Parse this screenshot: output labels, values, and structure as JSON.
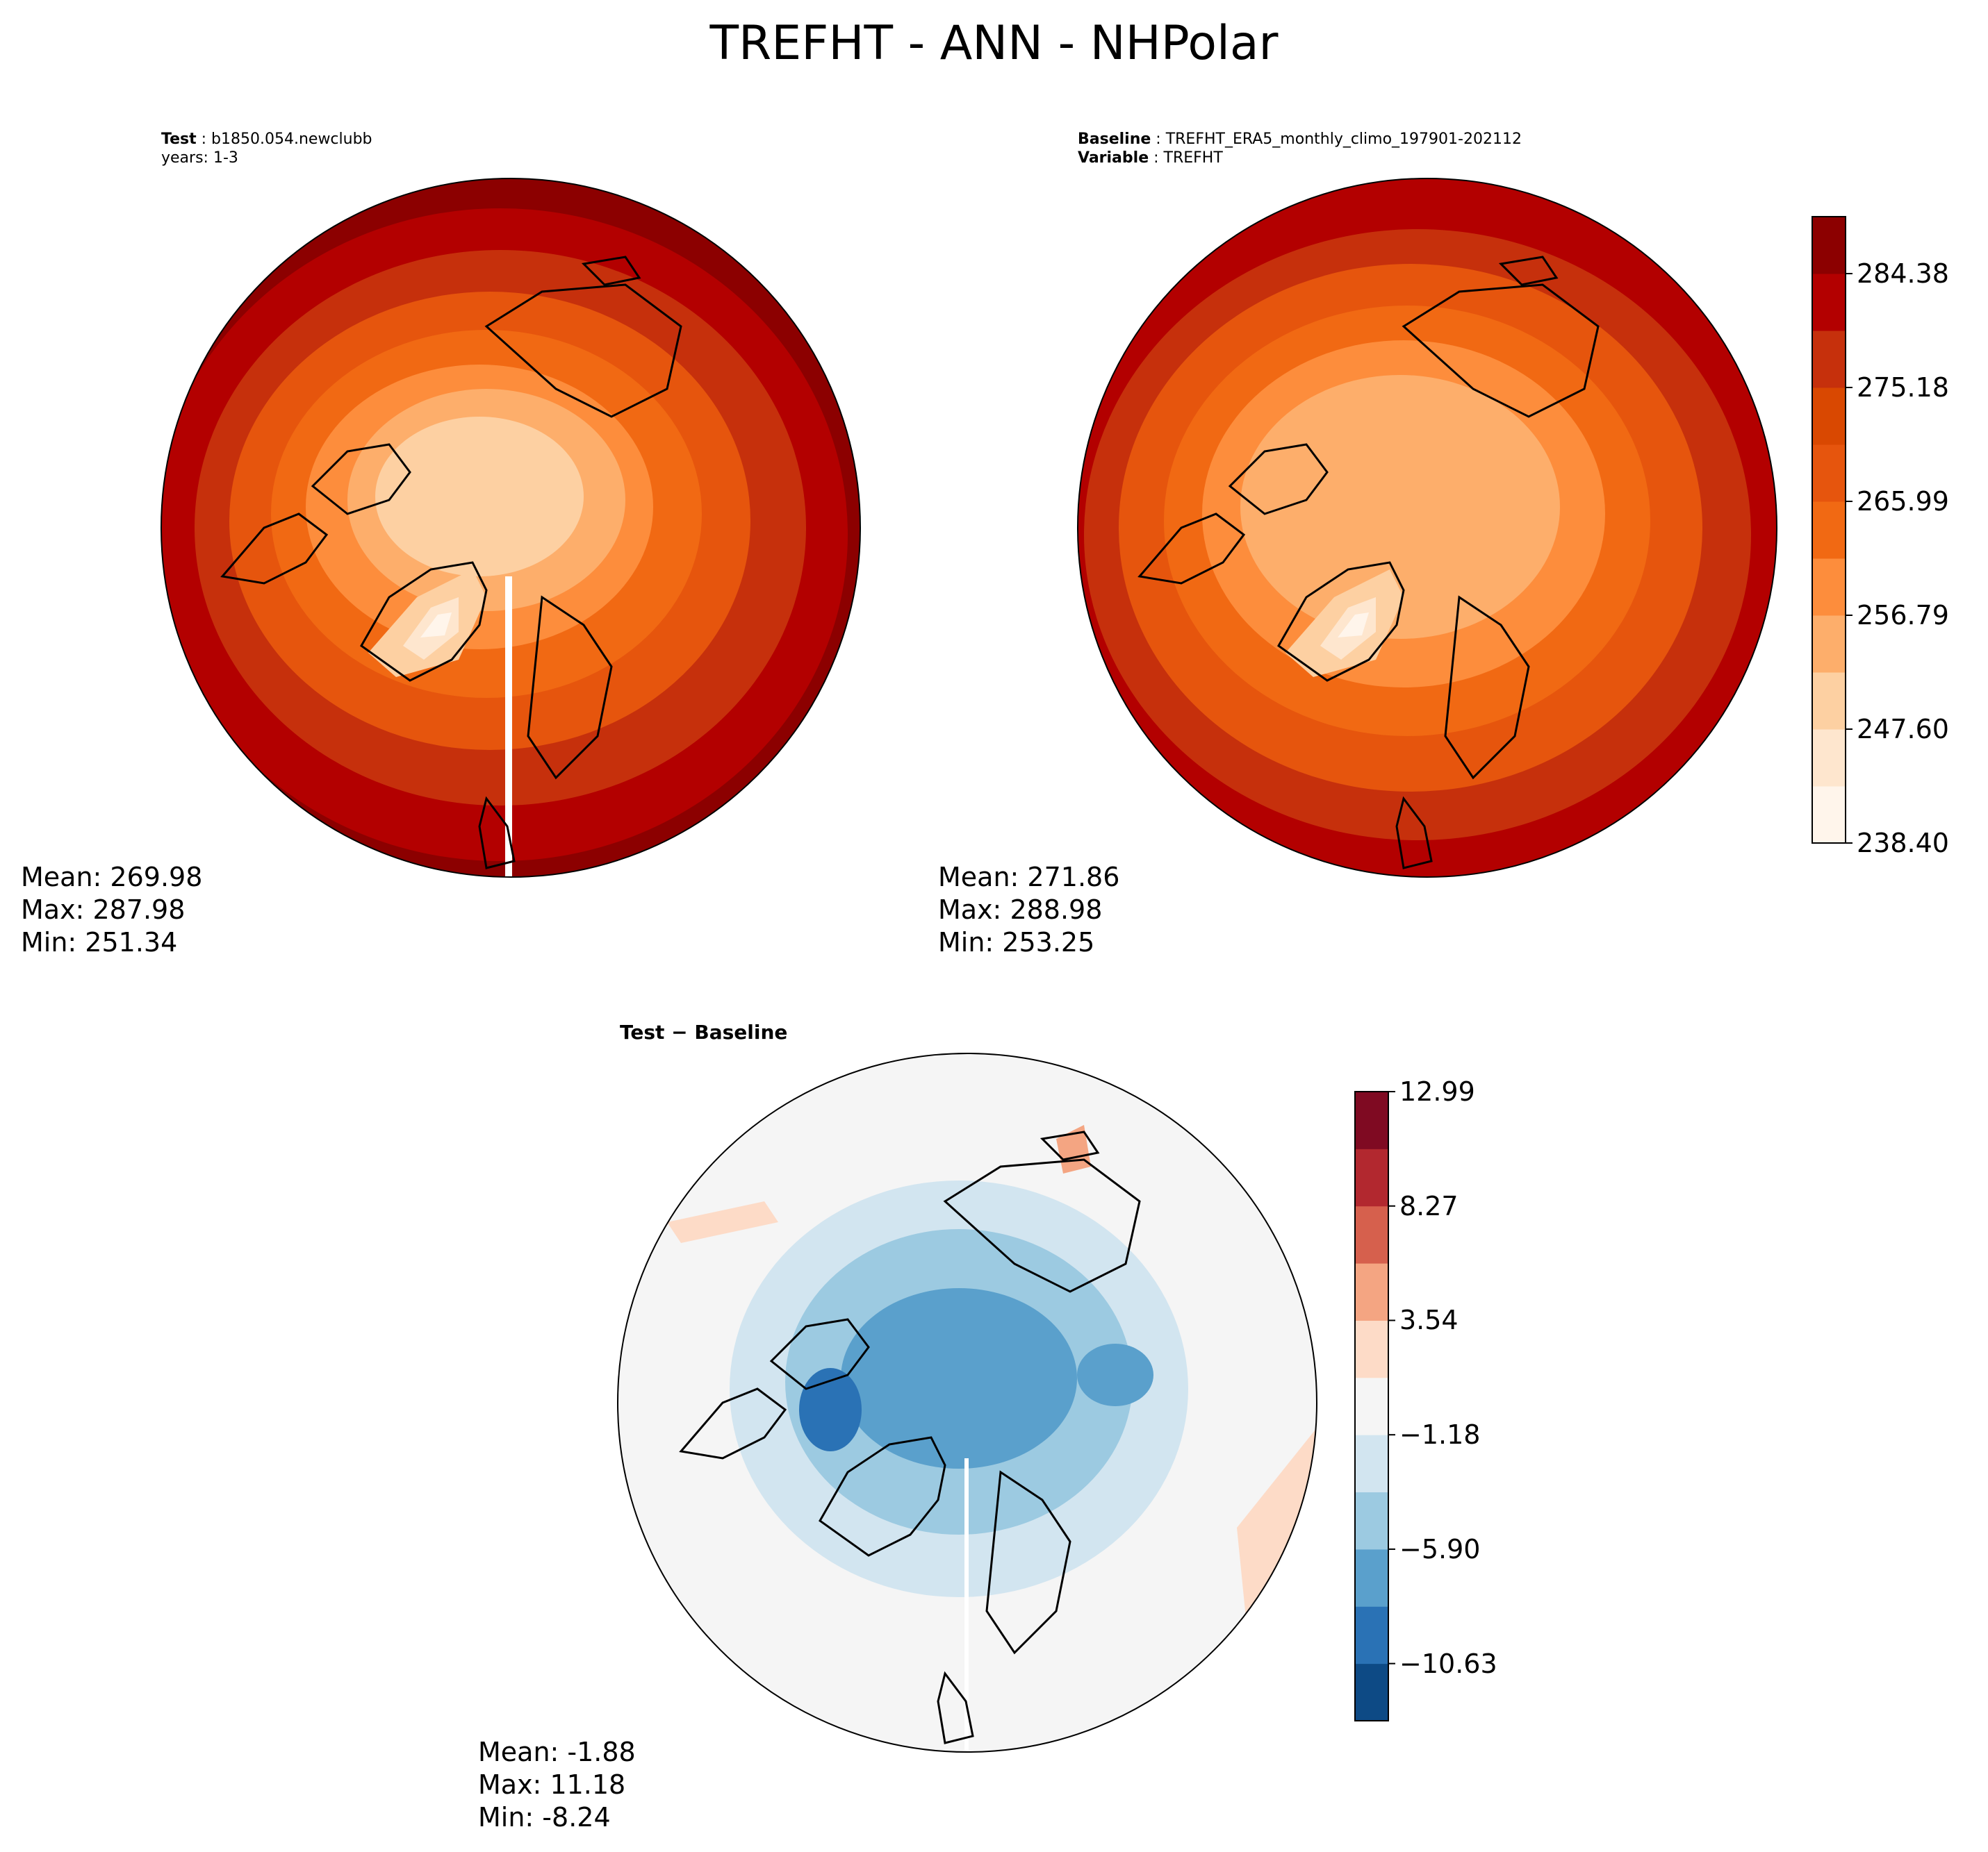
{
  "title": "TREFHT - ANN - NHPolar",
  "panels": {
    "test": {
      "label": "Test",
      "name": "b1850.054.newclubb",
      "years": "years: 1-3",
      "stats": {
        "mean": "Mean: 269.98",
        "max": "Max: 287.98",
        "min": "Min: 251.34"
      }
    },
    "baseline": {
      "label": "Baseline",
      "name": "TREFHT_ERA5_monthly_climo_197901-202112",
      "var_label": "Variable",
      "var_name": "TREFHT",
      "stats": {
        "mean": "Mean: 271.86",
        "max": "Max: 288.98",
        "min": "Min: 253.25"
      }
    },
    "diff": {
      "title": "Test − Baseline",
      "stats": {
        "mean": "Mean: -1.88",
        "max": "Max: 11.18",
        "min": "Min: -8.24"
      }
    }
  },
  "colorbars": {
    "main": {
      "ticks": [
        "238.40",
        "247.60",
        "256.79",
        "265.99",
        "275.18",
        "284.38"
      ],
      "colors": [
        "#fff5eb",
        "#fee6ce",
        "#fdd0a2",
        "#fdae6b",
        "#fd8d3c",
        "#f16913",
        "#e6550d",
        "#d94801",
        "#c6300c",
        "#b30000",
        "#8c0000"
      ]
    },
    "diff": {
      "ticks": [
        "−10.63",
        "−5.90",
        "−1.18",
        "3.54",
        "8.27",
        "12.99"
      ],
      "colors": [
        "#0d4a85",
        "#2a72b5",
        "#5aa0cc",
        "#9ccae1",
        "#d2e5f0",
        "#f5f5f5",
        "#fddbc7",
        "#f4a582",
        "#d6604d",
        "#b2282f",
        "#7f0a22"
      ]
    }
  }
}
